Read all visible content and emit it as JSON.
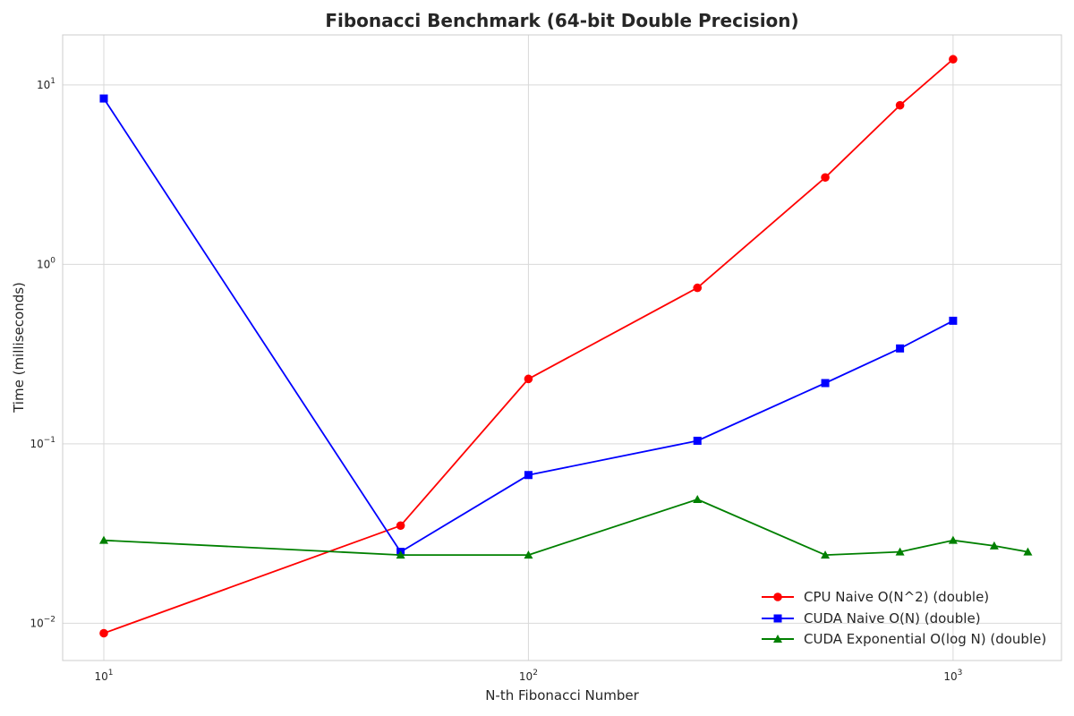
{
  "chart_data": {
    "type": "line",
    "title": "Fibonacci Benchmark (64-bit Double Precision)",
    "xlabel": "N-th Fibonacci Number",
    "ylabel": "Time (milliseconds)",
    "xscale": "log",
    "yscale": "log",
    "xlim": [
      8,
      1800
    ],
    "ylim": [
      0.0062,
      19
    ],
    "xticks": [
      {
        "value": 10,
        "base": "10",
        "exp": "1"
      },
      {
        "value": 100,
        "base": "10",
        "exp": "2"
      },
      {
        "value": 1000,
        "base": "10",
        "exp": "3"
      }
    ],
    "yticks": [
      {
        "value": 0.01,
        "base": "10",
        "exp": "−2"
      },
      {
        "value": 0.1,
        "base": "10",
        "exp": "−1"
      },
      {
        "value": 1,
        "base": "10",
        "exp": "0"
      },
      {
        "value": 10,
        "base": "10",
        "exp": "1"
      }
    ],
    "grid": true,
    "legend_position": "lower-right",
    "series": [
      {
        "name": "CPU Naive O(N^2) (double)",
        "color": "#ff0000",
        "marker": "circle",
        "x": [
          10,
          50,
          100,
          250,
          500,
          750,
          1000
        ],
        "y": [
          0.0088,
          0.035,
          0.23,
          0.74,
          3.05,
          7.7,
          13.9
        ]
      },
      {
        "name": "CUDA Naive O(N) (double)",
        "color": "#0000ff",
        "marker": "square",
        "x": [
          10,
          50,
          100,
          250,
          500,
          750,
          1000
        ],
        "y": [
          8.4,
          0.025,
          0.067,
          0.104,
          0.218,
          0.34,
          0.485
        ]
      },
      {
        "name": "CUDA Exponential O(log N) (double)",
        "color": "#008000",
        "marker": "triangle",
        "x": [
          10,
          50,
          100,
          250,
          500,
          750,
          1000,
          1250,
          1500
        ],
        "y": [
          0.029,
          0.024,
          0.024,
          0.049,
          0.024,
          0.025,
          0.029,
          0.027,
          0.025
        ]
      }
    ]
  }
}
